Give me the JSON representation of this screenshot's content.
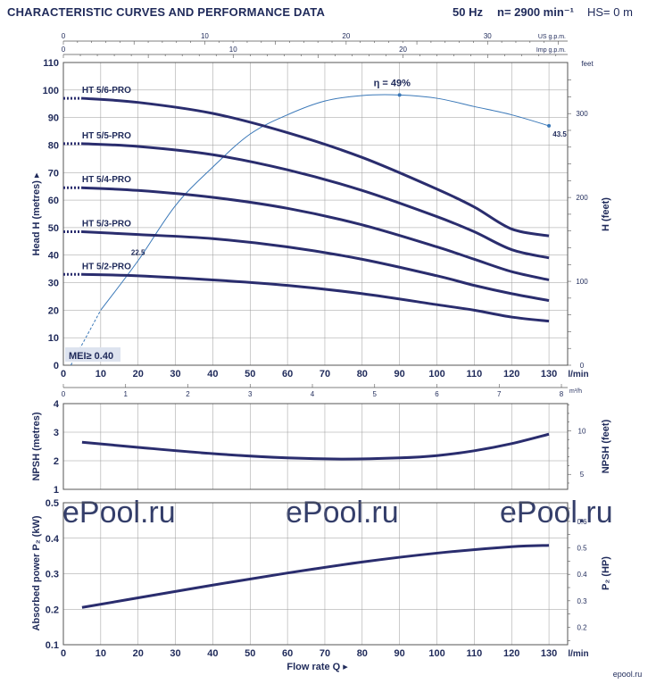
{
  "header": {
    "title": "CHARACTERISTIC CURVES AND PERFORMANCE DATA",
    "freq": "50 Hz",
    "speed": "n= 2900 min⁻¹",
    "hs": "HS= 0 m"
  },
  "watermark": "ePool.ru",
  "logo": "epool.ru",
  "colors": {
    "curve": "#2a2d6e",
    "efficiency": "#3a78b8",
    "text": "#1f2a5a",
    "grid": "#9a9a9a"
  },
  "chart_data": [
    {
      "type": "line",
      "title": "",
      "xlabel": "l/min",
      "ylabel": "Head H (metres)",
      "y2label": "H (feet)",
      "xlim": [
        0,
        135
      ],
      "ylim": [
        0,
        110
      ],
      "x_ticks": [
        0,
        10,
        20,
        30,
        40,
        50,
        60,
        70,
        80,
        90,
        100,
        110,
        120,
        130
      ],
      "y_ticks": [
        0,
        10,
        20,
        30,
        40,
        50,
        60,
        70,
        80,
        90,
        100,
        110
      ],
      "y2_unit": "feet",
      "y2_ticks": [
        0,
        100,
        200,
        300
      ],
      "top_axis_usgpm": {
        "label": "US g.p.m.",
        "ticks": [
          0,
          10,
          20,
          30
        ]
      },
      "top_axis_impgpm": {
        "label": "Imp g.p.m.",
        "ticks": [
          0,
          10,
          20
        ]
      },
      "bottom_axis_m3h": {
        "label": "m³/h",
        "ticks": [
          0,
          1,
          2,
          3,
          4,
          5,
          6,
          7,
          8
        ]
      },
      "series": [
        {
          "name": "HT 5/6-PRO",
          "x": [
            5,
            20,
            40,
            60,
            80,
            100,
            110,
            120,
            130
          ],
          "y": [
            97,
            95.5,
            91.5,
            84.5,
            75.5,
            64,
            57.5,
            49.5,
            47
          ]
        },
        {
          "name": "HT 5/5-PRO",
          "x": [
            5,
            20,
            40,
            60,
            80,
            100,
            110,
            120,
            130
          ],
          "y": [
            80.5,
            79.5,
            76.5,
            71,
            63.5,
            54,
            48.5,
            42,
            39
          ]
        },
        {
          "name": "HT 5/4-PRO",
          "x": [
            5,
            20,
            40,
            60,
            80,
            100,
            110,
            120,
            130
          ],
          "y": [
            64.5,
            63.5,
            61,
            57,
            51,
            43,
            38.5,
            34,
            31
          ]
        },
        {
          "name": "HT 5/3-PRO",
          "x": [
            5,
            20,
            40,
            60,
            80,
            100,
            110,
            120,
            130
          ],
          "y": [
            48.5,
            47.5,
            46,
            43,
            38.5,
            32.5,
            29,
            26,
            23.5
          ]
        },
        {
          "name": "HT 5/2-PRO",
          "x": [
            5,
            20,
            40,
            60,
            80,
            100,
            110,
            120,
            130
          ],
          "y": [
            33,
            32.5,
            31,
            29,
            26,
            22,
            20,
            17.5,
            16
          ]
        }
      ],
      "efficiency": {
        "label": "η = 49%",
        "x": [
          2,
          10,
          20,
          30,
          40,
          50,
          60,
          70,
          80,
          90,
          100,
          110,
          120,
          130
        ],
        "y": [
          0,
          20,
          38,
          58,
          72,
          84,
          91,
          96,
          98,
          98.2,
          97,
          94,
          91,
          87
        ],
        "annotations": [
          {
            "text": "22.5",
            "x": 20,
            "y": 44
          },
          {
            "text": "49%",
            "x": 90,
            "y": 98.2
          },
          {
            "text": "43.5",
            "x": 130,
            "y": 87
          }
        ]
      },
      "mei_label": "MEI≥ 0.40"
    },
    {
      "type": "line",
      "ylabel": "NPSH (metres)",
      "y2label": "NPSH (feet)",
      "xlim": [
        0,
        135
      ],
      "ylim": [
        1,
        4
      ],
      "y_ticks": [
        1,
        2,
        3,
        4
      ],
      "y2_ticks": [
        5,
        10
      ],
      "series": [
        {
          "name": "NPSH",
          "x": [
            5,
            20,
            40,
            60,
            75,
            90,
            100,
            110,
            120,
            130
          ],
          "y": [
            2.65,
            2.47,
            2.25,
            2.1,
            2.06,
            2.1,
            2.18,
            2.35,
            2.6,
            2.93
          ]
        }
      ]
    },
    {
      "type": "line",
      "xlabel": "Flow rate Q",
      "ylabel": "Absorbed power P₂ (kW)",
      "y2label": "P₂ (HP)",
      "xlim": [
        0,
        135
      ],
      "ylim": [
        0.1,
        0.5
      ],
      "y_ticks": [
        0.1,
        0.2,
        0.3,
        0.4,
        0.5
      ],
      "y2_ticks": [
        0.2,
        0.3,
        0.4,
        0.5,
        0.6
      ],
      "x_ticks": [
        0,
        10,
        20,
        30,
        40,
        50,
        60,
        70,
        80,
        90,
        100,
        110,
        120,
        130
      ],
      "x_unit": "l/min",
      "series": [
        {
          "name": "P2",
          "x": [
            5,
            20,
            40,
            60,
            80,
            100,
            120,
            130
          ],
          "y": [
            0.205,
            0.232,
            0.268,
            0.302,
            0.333,
            0.358,
            0.376,
            0.38
          ]
        }
      ]
    }
  ]
}
